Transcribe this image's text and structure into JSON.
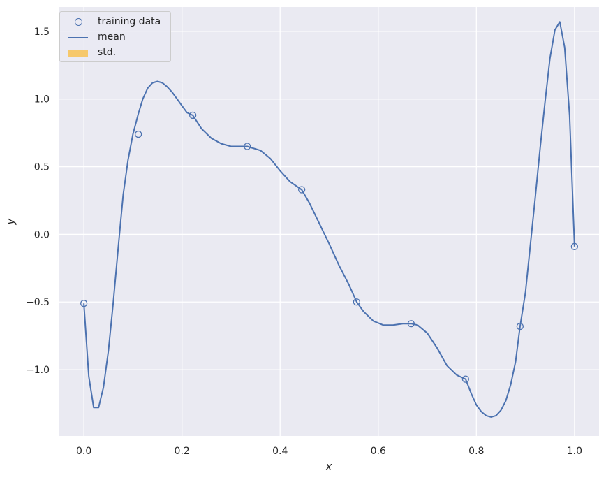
{
  "chart_data": {
    "type": "line",
    "xlabel": "x",
    "ylabel": "y",
    "xlim": [
      -0.05,
      1.05
    ],
    "ylim": [
      -1.49,
      1.68
    ],
    "xticks": [
      0.0,
      0.2,
      0.4,
      0.6,
      0.8,
      1.0
    ],
    "xtick_labels": [
      "0.0",
      "0.2",
      "0.4",
      "0.6",
      "0.8",
      "1.0"
    ],
    "yticks": [
      -1.0,
      -0.5,
      0.0,
      0.5,
      1.0,
      1.5
    ],
    "ytick_labels": [
      "−1.0",
      "−0.5",
      "0.0",
      "0.5",
      "1.0",
      "1.5"
    ],
    "grid": true,
    "legend_position": "top-left",
    "legend": {
      "training": "training data",
      "mean": "mean",
      "std": "std."
    },
    "colors": {
      "background": "#eaeaf2",
      "grid": "#ffffff",
      "series": "#4c72b0",
      "std_fill": "#f6c86b"
    },
    "training_data": {
      "x": [
        0.0,
        0.111,
        0.222,
        0.333,
        0.444,
        0.556,
        0.667,
        0.778,
        0.889,
        1.0
      ],
      "y": [
        -0.51,
        0.74,
        0.88,
        0.65,
        0.33,
        -0.5,
        -0.66,
        -1.07,
        -0.68,
        -0.09
      ]
    },
    "mean": {
      "x": [
        0.0,
        0.01,
        0.02,
        0.03,
        0.04,
        0.05,
        0.06,
        0.07,
        0.08,
        0.09,
        0.1,
        0.111,
        0.12,
        0.13,
        0.14,
        0.15,
        0.16,
        0.17,
        0.18,
        0.19,
        0.2,
        0.21,
        0.222,
        0.24,
        0.26,
        0.28,
        0.3,
        0.333,
        0.36,
        0.38,
        0.4,
        0.42,
        0.444,
        0.46,
        0.48,
        0.5,
        0.52,
        0.54,
        0.556,
        0.57,
        0.59,
        0.61,
        0.63,
        0.65,
        0.667,
        0.68,
        0.7,
        0.72,
        0.74,
        0.76,
        0.778,
        0.79,
        0.8,
        0.81,
        0.82,
        0.83,
        0.84,
        0.85,
        0.86,
        0.87,
        0.88,
        0.889,
        0.9,
        0.91,
        0.92,
        0.93,
        0.94,
        0.95,
        0.96,
        0.97,
        0.98,
        0.99,
        1.0
      ],
      "y": [
        -0.51,
        -1.05,
        -1.28,
        -1.28,
        -1.13,
        -0.86,
        -0.5,
        -0.1,
        0.29,
        0.55,
        0.74,
        0.89,
        1.0,
        1.08,
        1.12,
        1.13,
        1.12,
        1.09,
        1.05,
        1.0,
        0.95,
        0.9,
        0.88,
        0.78,
        0.71,
        0.67,
        0.65,
        0.65,
        0.62,
        0.56,
        0.47,
        0.39,
        0.33,
        0.23,
        0.08,
        -0.07,
        -0.23,
        -0.37,
        -0.5,
        -0.57,
        -0.64,
        -0.67,
        -0.67,
        -0.66,
        -0.66,
        -0.67,
        -0.73,
        -0.84,
        -0.97,
        -1.04,
        -1.07,
        -1.18,
        -1.26,
        -1.31,
        -1.34,
        -1.35,
        -1.34,
        -1.3,
        -1.23,
        -1.11,
        -0.94,
        -0.68,
        -0.43,
        -0.08,
        0.27,
        0.64,
        0.98,
        1.3,
        1.51,
        1.57,
        1.38,
        0.88,
        -0.09
      ]
    }
  }
}
